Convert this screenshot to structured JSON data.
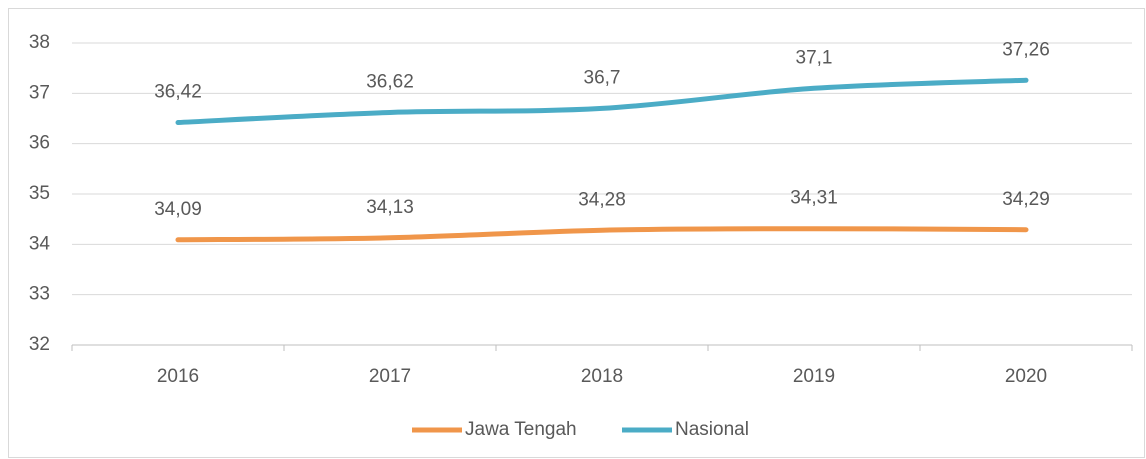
{
  "chart_data": {
    "type": "line",
    "categories": [
      "2016",
      "2017",
      "2018",
      "2019",
      "2020"
    ],
    "series": [
      {
        "name": "Jawa Tengah",
        "color": "#f0964a",
        "values": [
          34.09,
          34.13,
          34.28,
          34.31,
          34.29
        ],
        "value_labels": [
          "34,09",
          "34,13",
          "34,28",
          "34,31",
          "34,29"
        ]
      },
      {
        "name": "Nasional",
        "color": "#4bacc6",
        "values": [
          36.42,
          36.62,
          36.7,
          37.1,
          37.26
        ],
        "value_labels": [
          "36,42",
          "36,62",
          "36,7",
          "37,1",
          "37,26"
        ]
      }
    ],
    "ylim": [
      32,
      38
    ],
    "yticks": [
      32,
      33,
      34,
      35,
      36,
      37,
      38
    ],
    "grid": true,
    "legend": "bottom"
  }
}
